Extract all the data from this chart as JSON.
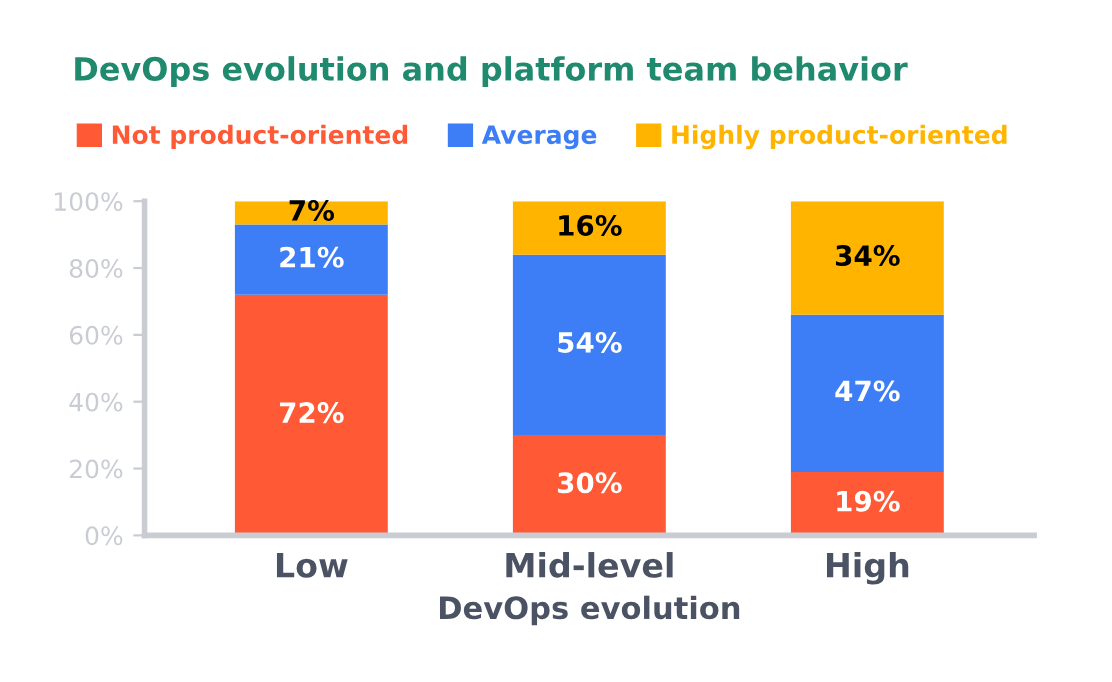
{
  "chart_data": {
    "type": "bar",
    "title": "DevOps evolution and platform team behavior",
    "xlabel": "DevOps evolution",
    "categories": [
      "Low",
      "Mid-level",
      "High"
    ],
    "stacked": true,
    "series": [
      {
        "name": "Not product-oriented",
        "color": "#ff5a35",
        "values": [
          72,
          30,
          19
        ],
        "value_labels": [
          "72%",
          "30%",
          "19%"
        ]
      },
      {
        "name": "Average",
        "color": "#3d7ef7",
        "values": [
          21,
          54,
          47
        ],
        "value_labels": [
          "21%",
          "54%",
          "47%"
        ]
      },
      {
        "name": "Highly product-oriented",
        "color": "#ffb400",
        "values": [
          7,
          16,
          34
        ],
        "value_labels": [
          "7%",
          "16%",
          "34%"
        ]
      }
    ],
    "ylim": [
      0,
      100
    ],
    "yticks": [
      {
        "value": 0,
        "label": "0%"
      },
      {
        "value": 20,
        "label": "20%"
      },
      {
        "value": 40,
        "label": "40%"
      },
      {
        "value": 60,
        "label": "60%"
      },
      {
        "value": 80,
        "label": "80%"
      },
      {
        "value": 100,
        "label": "100%"
      }
    ],
    "legend": "top left",
    "grid": false
  }
}
